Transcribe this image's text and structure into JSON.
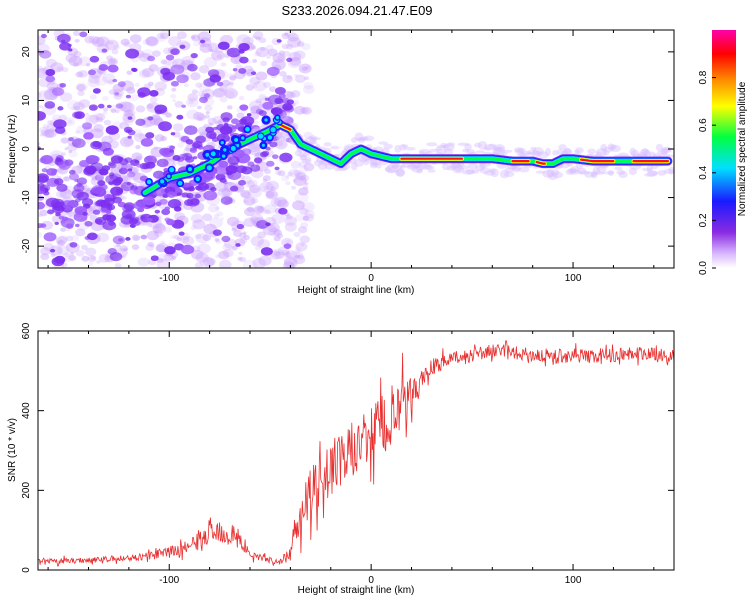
{
  "title": "S233.2026.094.21.47.E09",
  "chart_data": [
    {
      "type": "heatmap",
      "xlabel": "Height of straight line (km)",
      "ylabel": "Frequency (Hz)",
      "xlim": [
        -165,
        150
      ],
      "ylim": [
        -24.5,
        24.5
      ],
      "xticks": [
        -100,
        0,
        100
      ],
      "xtick_labels": [
        "-100",
        "0",
        "100"
      ],
      "yticks": [
        -20,
        -10,
        0,
        10,
        20
      ],
      "ytick_labels": [
        "-20",
        "-10",
        "0",
        "10",
        "20"
      ],
      "colorbar": {
        "label": "Normalized spectral amplitude",
        "range": [
          0,
          1
        ],
        "ticks": [
          0.0,
          0.2,
          0.4,
          0.6,
          0.8
        ],
        "tick_labels": [
          "0.0",
          "0.2",
          "0.4",
          "0.6",
          "0.8"
        ],
        "colors": [
          "#ffffff",
          "#cfa8ff",
          "#8a2be2",
          "#1a1aff",
          "#00e0ff",
          "#00ff40",
          "#ffff00",
          "#ff8000",
          "#ff0000",
          "#ff00aa"
        ]
      },
      "ridge": {
        "x": [
          -112,
          -100,
          -90,
          -80,
          -70,
          -60,
          -52,
          -45,
          -40,
          -35,
          -30,
          -25,
          -20,
          -15,
          -10,
          -5,
          0,
          5,
          10,
          20,
          30,
          40,
          50,
          60,
          70,
          80,
          85,
          90,
          95,
          100,
          110,
          120,
          130,
          140,
          147
        ],
        "y": [
          -9,
          -6,
          -5,
          -3,
          0,
          2,
          3.5,
          5,
          4,
          1,
          0,
          -1,
          -2,
          -3,
          -1,
          0,
          -1,
          -1.5,
          -2,
          -2,
          -2,
          -2,
          -2,
          -2,
          -2.5,
          -2.5,
          -3,
          -3,
          -2,
          -2,
          -2.5,
          -2.5,
          -2.5,
          -2.5,
          -2.5
        ],
        "peak_amplitude": 0.95
      },
      "scatter_region": {
        "x_from": -165,
        "x_to": -40,
        "y_from": -24,
        "y_to": 24
      }
    },
    {
      "type": "line",
      "xlabel": "Height of straight line (km)",
      "ylabel": "SNR (10 * v/v)",
      "xlim": [
        -165,
        150
      ],
      "ylim": [
        0,
        600
      ],
      "xticks": [
        -100,
        0,
        100
      ],
      "xtick_labels": [
        "-100",
        "0",
        "100"
      ],
      "yticks": [
        0,
        200,
        400,
        600
      ],
      "ytick_labels": [
        "0",
        "200",
        "400",
        "600"
      ],
      "series": [
        {
          "name": "SNR",
          "color": "#e83030",
          "x": [
            -165,
            -140,
            -120,
            -110,
            -100,
            -90,
            -80,
            -75,
            -70,
            -65,
            -60,
            -50,
            -45,
            -40,
            -38,
            -35,
            -30,
            -25,
            -20,
            -15,
            -10,
            -5,
            0,
            5,
            10,
            15,
            20,
            25,
            30,
            40,
            50,
            60,
            70,
            80,
            90,
            100,
            110,
            120,
            130,
            140,
            150
          ],
          "y": [
            20,
            25,
            30,
            35,
            45,
            60,
            90,
            100,
            90,
            70,
            40,
            25,
            20,
            40,
            100,
            150,
            190,
            230,
            250,
            270,
            300,
            320,
            340,
            360,
            380,
            400,
            440,
            480,
            510,
            530,
            540,
            550,
            545,
            540,
            535,
            540,
            535,
            540,
            545,
            540,
            535
          ],
          "noise": [
            10,
            10,
            12,
            14,
            20,
            25,
            35,
            45,
            40,
            30,
            15,
            10,
            10,
            25,
            60,
            80,
            90,
            100,
            100,
            100,
            100,
            100,
            110,
            120,
            120,
            110,
            60,
            40,
            30,
            25,
            25,
            25,
            25,
            25,
            30,
            25,
            25,
            25,
            25,
            25,
            25
          ]
        }
      ]
    }
  ],
  "icons": {
    "axis_frame": "plot-frame"
  },
  "colors": {
    "line": "#e83030",
    "axis": "#000000",
    "background": "#ffffff"
  }
}
